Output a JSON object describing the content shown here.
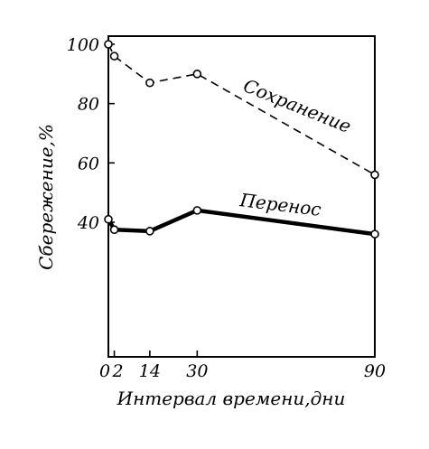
{
  "chart_data": {
    "type": "line",
    "xlabel": "Интервал времени,дни",
    "ylabel": "Сбережение,%",
    "xlim": [
      0,
      90
    ],
    "ylim": [
      0,
      100
    ],
    "x_ticks": [
      {
        "value": 0,
        "label": "0"
      },
      {
        "value": 2,
        "label": "2"
      },
      {
        "value": 14,
        "label": "14"
      },
      {
        "value": 30,
        "label": "30"
      },
      {
        "value": 90,
        "label": "90"
      }
    ],
    "y_ticks": [
      {
        "value": 40,
        "label": "40"
      },
      {
        "value": 60,
        "label": "60"
      },
      {
        "value": 80,
        "label": "80"
      },
      {
        "value": 100,
        "label": "100"
      }
    ],
    "grid": false,
    "series": [
      {
        "name": "Сохранение",
        "style": "dashed",
        "x": [
          0,
          2,
          14,
          30,
          90
        ],
        "y": [
          100,
          96,
          87,
          90,
          56
        ]
      },
      {
        "name": "Перенос",
        "style": "solid-thick",
        "x": [
          0,
          2,
          14,
          30,
          90
        ],
        "y": [
          41,
          37.5,
          37,
          44,
          36
        ]
      }
    ]
  }
}
